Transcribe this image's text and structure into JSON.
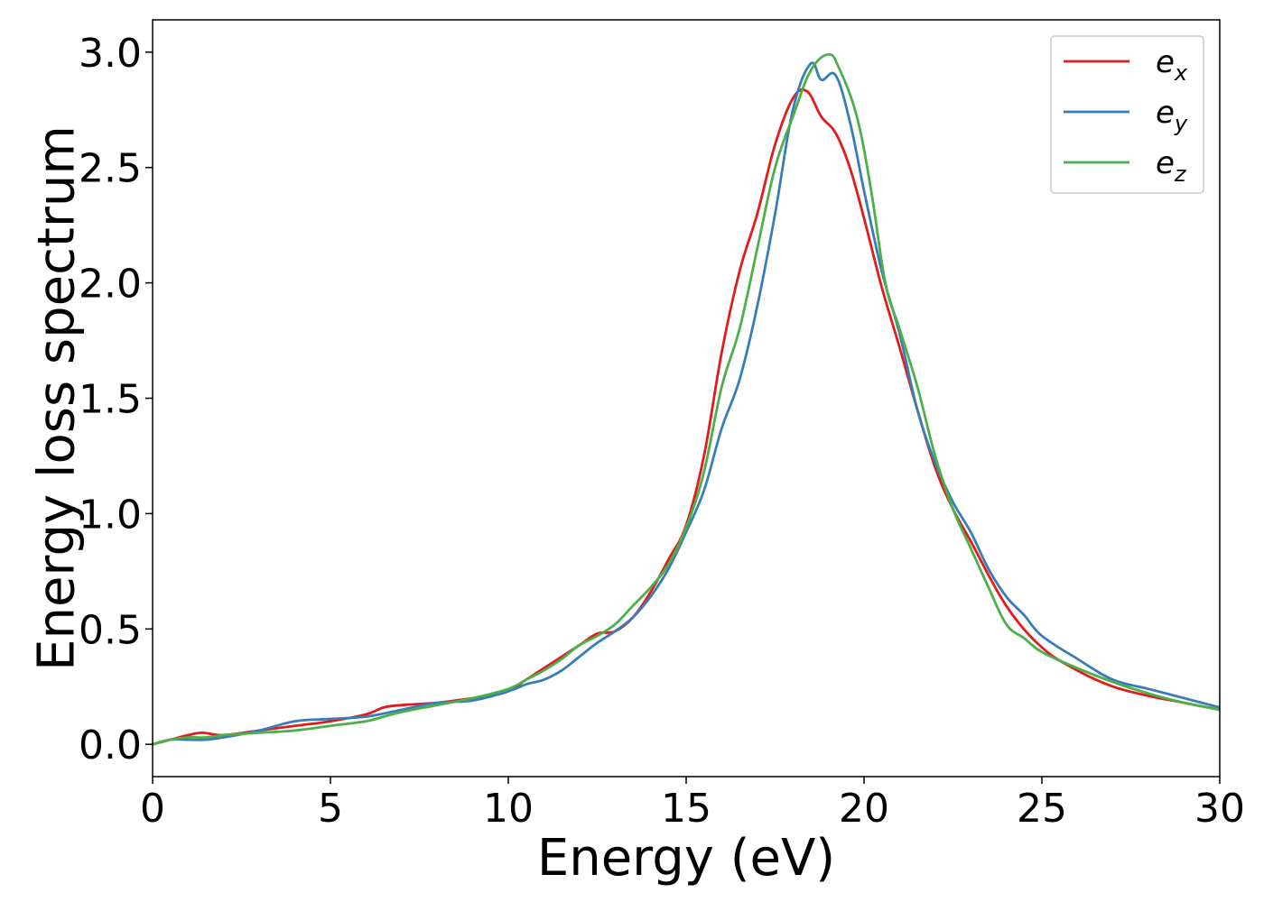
{
  "chart_data": {
    "type": "line",
    "title": "",
    "xlabel": "Energy (eV)",
    "ylabel": "Energy loss spectrum",
    "xlim": [
      0,
      30
    ],
    "ylim": [
      -0.14,
      3.14
    ],
    "xticks": [
      0,
      5,
      10,
      15,
      20,
      25,
      30
    ],
    "xtick_labels": [
      "0",
      "5",
      "10",
      "15",
      "20",
      "25",
      "30"
    ],
    "yticks": [
      0.0,
      0.5,
      1.0,
      1.5,
      2.0,
      2.5,
      3.0
    ],
    "ytick_labels": [
      "0.0",
      "0.5",
      "1.0",
      "1.5",
      "2.0",
      "2.5",
      "3.0"
    ],
    "grid": false,
    "legend_position": "upper right",
    "series": [
      {
        "name": "e_x",
        "legend_base": "e",
        "legend_sub": "x",
        "color": "#e41a1c",
        "x": [
          0,
          0.5,
          1,
          1.4,
          2,
          3,
          4,
          5,
          6,
          6.5,
          7,
          8,
          9,
          9.5,
          10,
          10.5,
          11,
          11.5,
          12,
          12.5,
          13,
          13.5,
          14,
          14.5,
          15,
          15.5,
          16,
          16.5,
          17,
          17.5,
          18,
          18.4,
          18.8,
          19.2,
          19.6,
          20,
          20.5,
          21,
          21.5,
          22,
          22.5,
          23,
          24,
          25,
          26,
          27,
          28,
          29,
          30
        ],
        "y": [
          0.0,
          0.02,
          0.04,
          0.05,
          0.04,
          0.06,
          0.08,
          0.1,
          0.13,
          0.16,
          0.17,
          0.18,
          0.2,
          0.21,
          0.23,
          0.28,
          0.33,
          0.38,
          0.43,
          0.48,
          0.49,
          0.55,
          0.66,
          0.8,
          0.95,
          1.25,
          1.7,
          2.05,
          2.3,
          2.6,
          2.8,
          2.83,
          2.72,
          2.65,
          2.5,
          2.28,
          1.98,
          1.72,
          1.45,
          1.2,
          1.02,
          0.88,
          0.6,
          0.42,
          0.32,
          0.25,
          0.21,
          0.18,
          0.15
        ]
      },
      {
        "name": "e_y",
        "legend_base": "e",
        "legend_sub": "y",
        "color": "#377eb8",
        "x": [
          0,
          0.5,
          1,
          1.5,
          2,
          3,
          4,
          5,
          6,
          7,
          8,
          9,
          10,
          10.5,
          11,
          11.5,
          12,
          12.5,
          13,
          13.5,
          14,
          14.5,
          15,
          15.5,
          16,
          16.5,
          17,
          17.5,
          18,
          18.5,
          18.8,
          19.2,
          19.6,
          20,
          20.5,
          21,
          21.5,
          22,
          22.5,
          23,
          23.5,
          24,
          24.5,
          25,
          26,
          27,
          28,
          29,
          30
        ],
        "y": [
          0.0,
          0.02,
          0.02,
          0.02,
          0.03,
          0.06,
          0.1,
          0.11,
          0.12,
          0.15,
          0.18,
          0.19,
          0.23,
          0.26,
          0.28,
          0.32,
          0.38,
          0.44,
          0.49,
          0.55,
          0.64,
          0.76,
          0.92,
          1.1,
          1.37,
          1.58,
          1.9,
          2.3,
          2.75,
          2.95,
          2.88,
          2.9,
          2.7,
          2.4,
          2.05,
          1.78,
          1.45,
          1.22,
          1.05,
          0.92,
          0.76,
          0.64,
          0.56,
          0.47,
          0.37,
          0.28,
          0.24,
          0.2,
          0.16
        ]
      },
      {
        "name": "e_z",
        "legend_base": "e",
        "legend_sub": "z",
        "color": "#4daf4a",
        "x": [
          0,
          0.5,
          1,
          1.5,
          2,
          3,
          4,
          5,
          6,
          6.5,
          7,
          8,
          9,
          10,
          10.5,
          11,
          11.5,
          12,
          12.5,
          13,
          13.5,
          14,
          14.5,
          15,
          15.5,
          16,
          16.5,
          17,
          17.5,
          18,
          18.5,
          19,
          19.3,
          19.8,
          20.2,
          20.6,
          21,
          21.5,
          22,
          22.5,
          23,
          23.5,
          24,
          24.5,
          25,
          26,
          27,
          28,
          29,
          30
        ],
        "y": [
          0.0,
          0.02,
          0.03,
          0.03,
          0.04,
          0.05,
          0.06,
          0.08,
          0.1,
          0.12,
          0.14,
          0.17,
          0.2,
          0.24,
          0.28,
          0.32,
          0.37,
          0.43,
          0.47,
          0.52,
          0.6,
          0.68,
          0.78,
          0.94,
          1.18,
          1.55,
          1.8,
          2.15,
          2.5,
          2.72,
          2.92,
          2.99,
          2.93,
          2.72,
          2.4,
          2.0,
          1.8,
          1.55,
          1.25,
          1.02,
          0.85,
          0.68,
          0.52,
          0.46,
          0.4,
          0.33,
          0.27,
          0.22,
          0.18,
          0.15
        ]
      }
    ]
  }
}
